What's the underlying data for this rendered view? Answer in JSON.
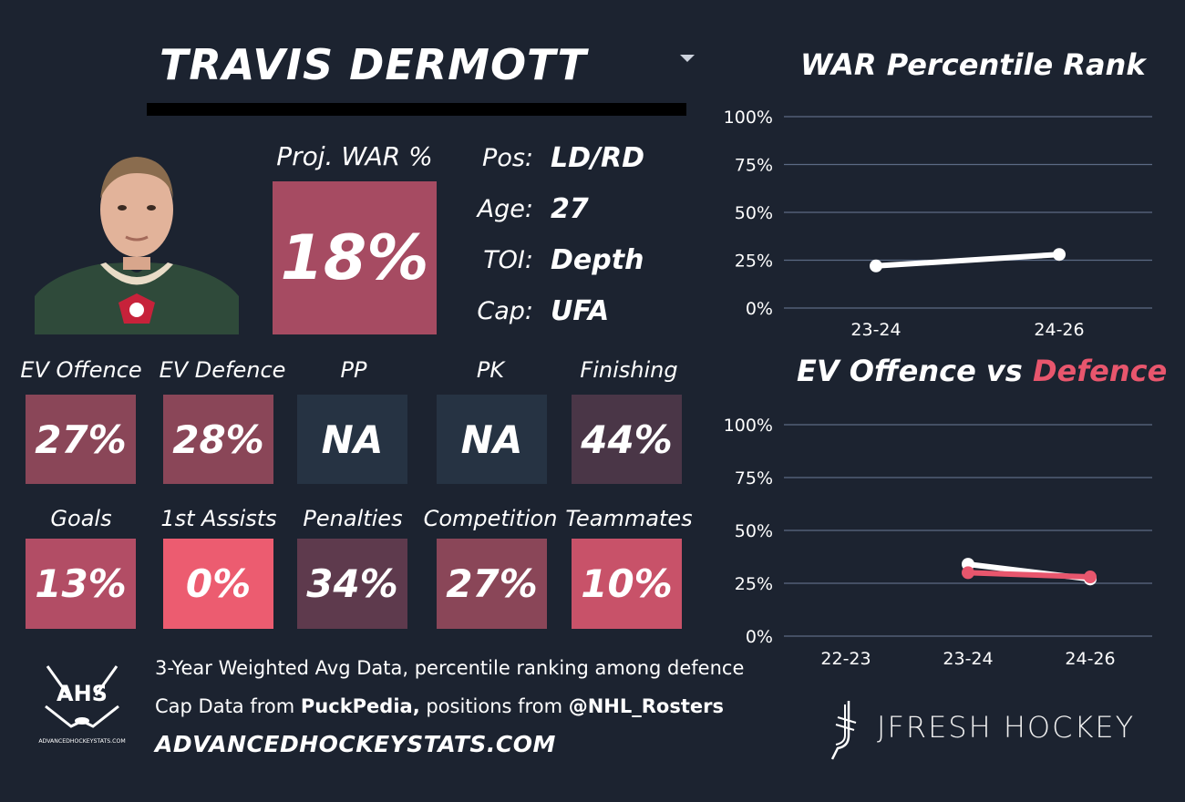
{
  "player": {
    "name": "TRAVIS DERMOTT",
    "pos_label": "Pos:",
    "pos": "LD/RD",
    "age_label": "Age:",
    "age": "27",
    "toi_label": "TOI:",
    "toi": "Depth",
    "cap_label": "Cap:",
    "cap": "UFA"
  },
  "proj_war": {
    "label": "Proj. WAR %",
    "value": "18%",
    "color": "#a64b62"
  },
  "tiles_row1": [
    {
      "label": "EV Offence",
      "value": "27%",
      "color": "#8a4658"
    },
    {
      "label": "EV Defence",
      "value": "28%",
      "color": "#8a4658"
    },
    {
      "label": "PP",
      "value": "NA",
      "color": "#263343"
    },
    {
      "label": "PK",
      "value": "NA",
      "color": "#263343"
    },
    {
      "label": "Finishing",
      "value": "44%",
      "color": "#4a3647"
    }
  ],
  "tiles_row2": [
    {
      "label": "Goals",
      "value": "13%",
      "color": "#b24d65"
    },
    {
      "label": "1st Assists",
      "value": "0%",
      "color": "#ec5c70"
    },
    {
      "label": "Penalties",
      "value": "34%",
      "color": "#5e3a4d"
    },
    {
      "label": "Competition",
      "value": "27%",
      "color": "#8a4658"
    },
    {
      "label": "Teammates",
      "value": "10%",
      "color": "#c85269"
    }
  ],
  "footer": {
    "line1": "3-Year Weighted Avg Data, percentile ranking among defence",
    "line2_pre": "Cap Data from ",
    "line2_b1": "PuckPedia,",
    "line2_mid": " positions from ",
    "line2_b2": "@NHL_Rosters",
    "site": "ADVANCEDHOCKEYSTATS.COM",
    "ahs_logo_text": "AHS",
    "ahs_logo_sub": "ADVANCEDHOCKEYSTATS.COM",
    "brand": "JFRESH HOCKEY"
  },
  "chart_data": [
    {
      "type": "line",
      "title": "WAR Percentile Rank",
      "categories": [
        "23-24",
        "24-26"
      ],
      "yticks": [
        "100%",
        "75%",
        "50%",
        "25%",
        "0%"
      ],
      "ylim": [
        0,
        100
      ],
      "series": [
        {
          "values": [
            22,
            28
          ],
          "color": "#ffffff"
        }
      ]
    },
    {
      "type": "line",
      "title_part1": "EV Offence vs ",
      "title_part2": "Defence",
      "categories": [
        "22-23",
        "23-24",
        "24-26"
      ],
      "yticks": [
        "100%",
        "75%",
        "50%",
        "25%",
        "0%"
      ],
      "ylim": [
        0,
        100
      ],
      "series": [
        {
          "values": [
            null,
            34,
            27
          ],
          "color": "#ffffff"
        },
        {
          "values": [
            null,
            30,
            28
          ],
          "color": "#e8566d"
        }
      ]
    }
  ]
}
